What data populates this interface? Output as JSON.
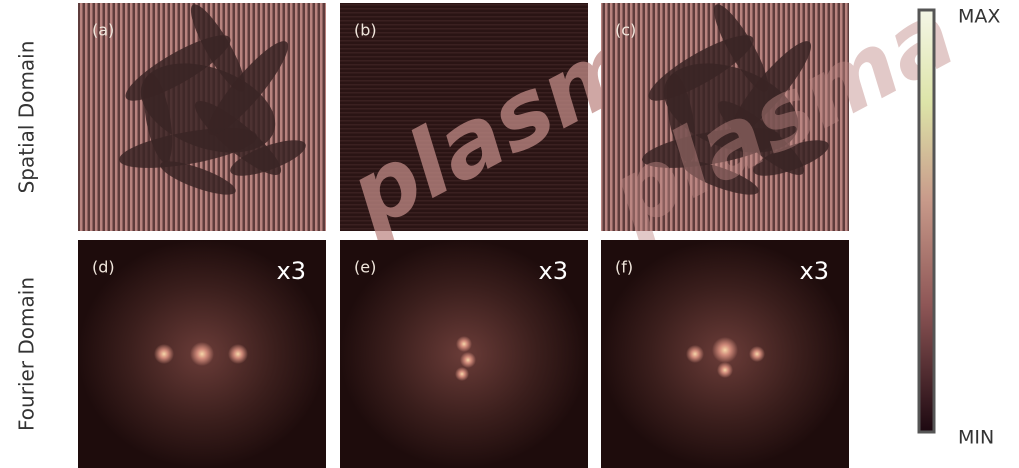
{
  "rows": [
    {
      "label": "Spatial Domain",
      "panels": [
        {
          "label": "(a)"
        },
        {
          "label": "(b)"
        },
        {
          "label": "(c)"
        }
      ]
    },
    {
      "label": "Fourier Domain",
      "panels": [
        {
          "label": "(d)",
          "scale": "x3"
        },
        {
          "label": "(e)",
          "scale": "x3"
        },
        {
          "label": "(f)",
          "scale": "x3"
        }
      ]
    }
  ],
  "watermark": "plasma",
  "colorbar": {
    "max": "MAX",
    "min": "MIN"
  }
}
